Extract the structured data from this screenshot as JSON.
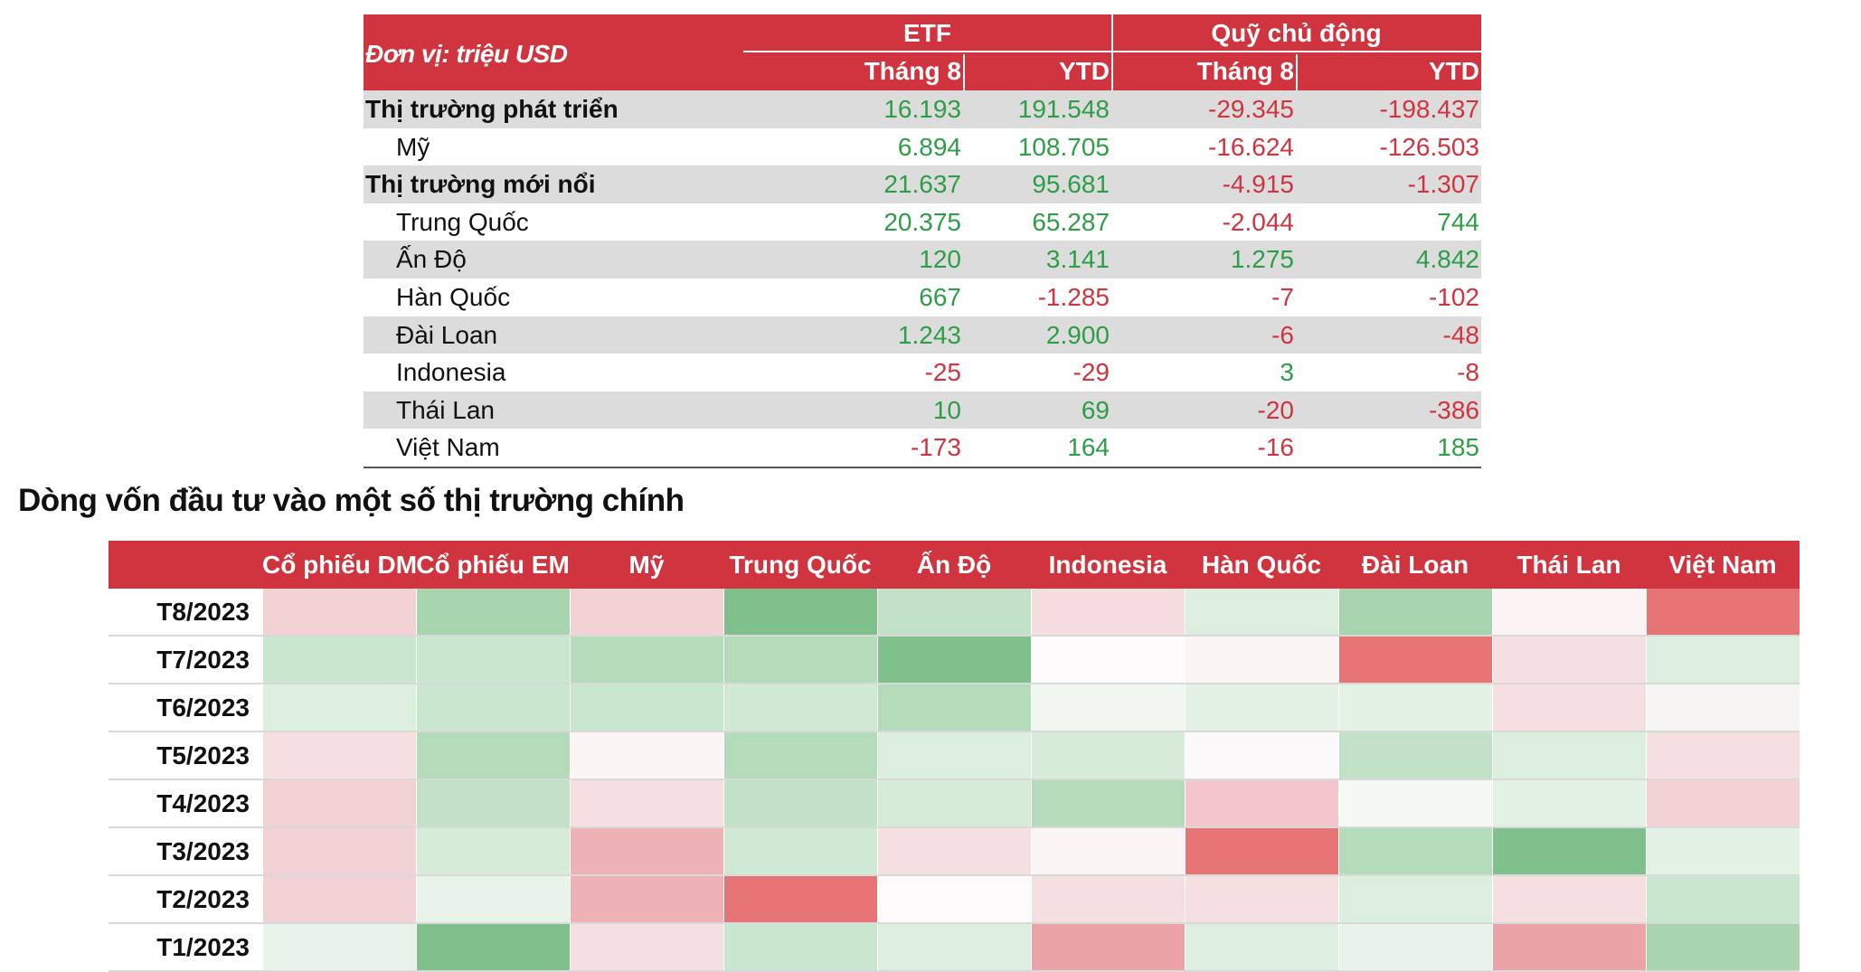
{
  "flow_table": {
    "unit_label": "Đơn vị: triệu USD",
    "groups": [
      "ETF",
      "Quỹ chủ động"
    ],
    "subheaders": [
      "Tháng 8",
      "YTD",
      "Tháng 8",
      "YTD"
    ],
    "rows": [
      {
        "label": "Thị trường phát triển",
        "values": [
          "16.193",
          "191.548",
          "-29.345",
          "-198.437"
        ]
      },
      {
        "label": "Mỹ",
        "values": [
          "6.894",
          "108.705",
          "-16.624",
          "-126.503"
        ]
      },
      {
        "label": "Thị trường mới nổi",
        "values": [
          "21.637",
          "95.681",
          "-4.915",
          "-1.307"
        ]
      },
      {
        "label": "Trung Quốc",
        "values": [
          "20.375",
          "65.287",
          "-2.044",
          "744"
        ]
      },
      {
        "label": "Ấn Độ",
        "values": [
          "120",
          "3.141",
          "1.275",
          "4.842"
        ]
      },
      {
        "label": "Hàn Quốc",
        "values": [
          "667",
          "-1.285",
          "-7",
          "-102"
        ]
      },
      {
        "label": "Đài Loan",
        "values": [
          "1.243",
          "2.900",
          "-6",
          "-48"
        ]
      },
      {
        "label": "Indonesia",
        "values": [
          "-25",
          "-29",
          "3",
          "-8"
        ]
      },
      {
        "label": "Thái Lan",
        "values": [
          "10",
          "69",
          "-20",
          "-386"
        ]
      },
      {
        "label": "Việt Nam",
        "values": [
          "-173",
          "164",
          "-16",
          "185"
        ]
      }
    ]
  },
  "heatmap_title": "Dòng vốn đầu tư vào một số thị trường chính",
  "heatmap": {
    "columns": [
      "Cổ phiếu DM",
      "Cổ phiếu EM",
      "Mỹ",
      "Trung Quốc",
      "Ấn Độ",
      "Indonesia",
      "Hàn Quốc",
      "Đài Loan",
      "Thái Lan",
      "Việt Nam"
    ],
    "rows": [
      {
        "label": "T8/2023",
        "cells": [
          "#f3d2d6",
          "#a8d5af",
          "#f3d2d6",
          "#7fc08c",
          "#c2e2c7",
          "#f6dde0",
          "#dcefdf",
          "#a8d5af",
          "#fbf3f4",
          "#e67474"
        ]
      },
      {
        "label": "T7/2023",
        "cells": [
          "#c9e6ce",
          "#c9e6ce",
          "#b4dbba",
          "#b4dbba",
          "#7fc08c",
          "#fdfbfb",
          "#fbf5f6",
          "#e67474",
          "#f6dfe1",
          "#dcefdf"
        ]
      },
      {
        "label": "T6/2023",
        "cells": [
          "#dcefdf",
          "#c9e6ce",
          "#c9e6ce",
          "#d0e9d4",
          "#b4dbba",
          "#f0f7f1",
          "#e3f2e5",
          "#e3f2e5",
          "#f6dfe1",
          "#f7f4f4"
        ]
      },
      {
        "label": "T5/2023",
        "cells": [
          "#f6dfe1",
          "#b4dbba",
          "#fbf5f6",
          "#b4dbba",
          "#dcefdf",
          "#d6ecd9",
          "#fbf9f9",
          "#c2e2c7",
          "#dcefdf",
          "#f6dfe1"
        ]
      },
      {
        "label": "T4/2023",
        "cells": [
          "#f3d2d6",
          "#c2e2c7",
          "#f6dfe1",
          "#c2e2c7",
          "#d6ecd9",
          "#b4dbba",
          "#f3c6cb",
          "#f5f9f5",
          "#e3f2e5",
          "#f3d2d6"
        ]
      },
      {
        "label": "T3/2023",
        "cells": [
          "#f3d2d6",
          "#d6ecd9",
          "#eeb1b5",
          "#d0e9d4",
          "#f6dfe1",
          "#fbf5f6",
          "#e67474",
          "#b4dbba",
          "#7fc08c",
          "#e3f2e5"
        ]
      },
      {
        "label": "T2/2023",
        "cells": [
          "#f3d2d6",
          "#e8f4ea",
          "#eeb1b5",
          "#e67474",
          "#fdfbfb",
          "#f6dfe1",
          "#f6dfe1",
          "#dcefdf",
          "#f6dfe1",
          "#c9e6ce"
        ]
      },
      {
        "label": "T1/2023",
        "cells": [
          "#e8f4ea",
          "#7fc08c",
          "#f6dfe1",
          "#c9e6ce",
          "#dcefdf",
          "#eba3a7",
          "#dcefdf",
          "#e8f4ea",
          "#eba3a7",
          "#a8d5af"
        ]
      }
    ]
  },
  "colors": {
    "header_red": "#d0343f",
    "positive": "#2e9e46",
    "negative": "#d0343f",
    "grey_row": "#dcdcdc"
  }
}
